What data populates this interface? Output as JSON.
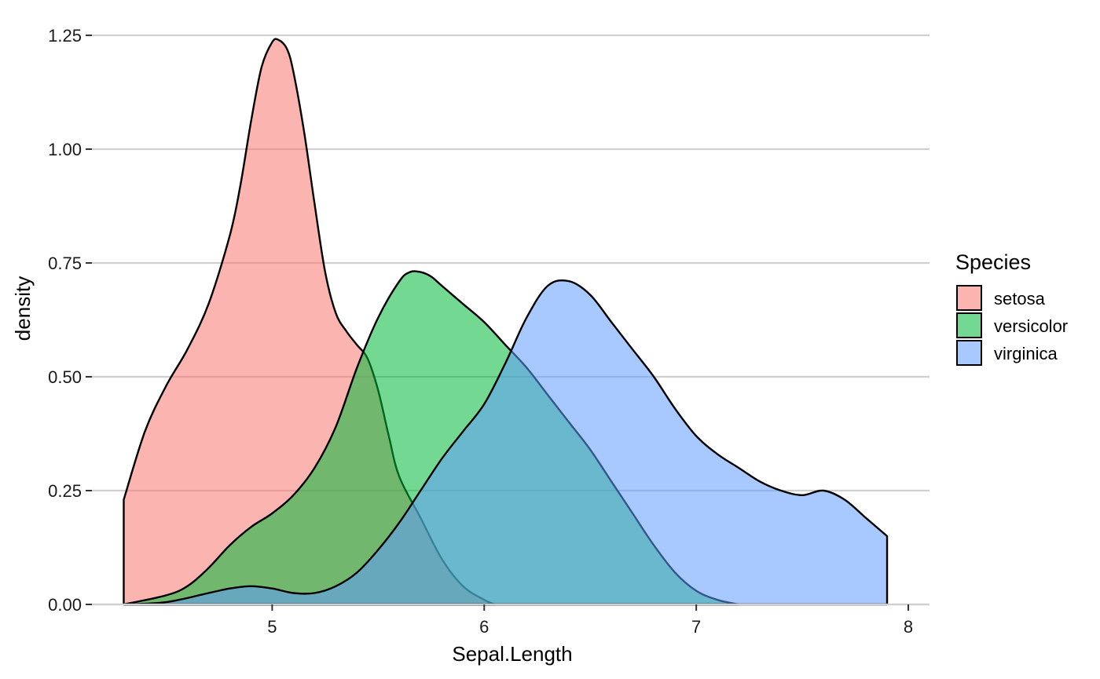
{
  "chart_data": {
    "type": "area",
    "subtype": "density",
    "xlabel": "Sepal.Length",
    "ylabel": "density",
    "xlim": [
      4.15,
      8.1
    ],
    "ylim": [
      0,
      1.25
    ],
    "x_ticks": [
      5,
      6,
      7,
      8
    ],
    "y_ticks": [
      0.0,
      0.25,
      0.5,
      0.75,
      1.0,
      1.25
    ],
    "x_tick_labels": [
      "5",
      "6",
      "7",
      "8"
    ],
    "y_tick_labels": [
      "0.00",
      "0.25",
      "0.50",
      "0.75",
      "1.00",
      "1.25"
    ],
    "grid": "horizontal",
    "legend": {
      "title": "Species",
      "position": "right"
    },
    "series": [
      {
        "name": "setosa",
        "color": "#F8766D",
        "x": [
          4.3,
          4.4,
          4.5,
          4.6,
          4.7,
          4.8,
          4.85,
          4.9,
          4.95,
          5.0,
          5.03,
          5.07,
          5.1,
          5.15,
          5.2,
          5.25,
          5.3,
          5.35,
          5.4,
          5.45,
          5.5,
          5.55,
          5.6,
          5.7,
          5.8,
          5.9,
          6.0,
          6.05
        ],
        "values": [
          0.23,
          0.38,
          0.48,
          0.56,
          0.66,
          0.81,
          0.92,
          1.06,
          1.18,
          1.235,
          1.24,
          1.22,
          1.17,
          1.04,
          0.88,
          0.73,
          0.64,
          0.6,
          0.57,
          0.54,
          0.47,
          0.37,
          0.28,
          0.19,
          0.1,
          0.04,
          0.01,
          0.0
        ]
      },
      {
        "name": "versicolor",
        "color": "#00BA38",
        "x": [
          4.3,
          4.5,
          4.6,
          4.7,
          4.8,
          4.9,
          5.0,
          5.1,
          5.2,
          5.3,
          5.4,
          5.5,
          5.6,
          5.65,
          5.7,
          5.75,
          5.8,
          5.9,
          6.0,
          6.1,
          6.2,
          6.3,
          6.4,
          6.5,
          6.6,
          6.7,
          6.8,
          6.9,
          7.0,
          7.1,
          7.2
        ],
        "values": [
          0.0,
          0.02,
          0.04,
          0.08,
          0.13,
          0.17,
          0.2,
          0.24,
          0.3,
          0.39,
          0.52,
          0.63,
          0.71,
          0.73,
          0.73,
          0.72,
          0.7,
          0.66,
          0.62,
          0.57,
          0.52,
          0.46,
          0.4,
          0.34,
          0.27,
          0.2,
          0.13,
          0.07,
          0.03,
          0.01,
          0.0
        ]
      },
      {
        "name": "virginica",
        "color": "#619CFF",
        "x": [
          4.3,
          4.5,
          4.7,
          4.8,
          4.9,
          5.0,
          5.1,
          5.2,
          5.3,
          5.4,
          5.5,
          5.6,
          5.7,
          5.8,
          5.9,
          6.0,
          6.1,
          6.2,
          6.3,
          6.4,
          6.5,
          6.6,
          6.7,
          6.8,
          6.9,
          7.0,
          7.1,
          7.2,
          7.3,
          7.4,
          7.5,
          7.6,
          7.7,
          7.8,
          7.9
        ],
        "values": [
          0.0,
          0.005,
          0.025,
          0.035,
          0.04,
          0.035,
          0.025,
          0.025,
          0.04,
          0.07,
          0.12,
          0.18,
          0.25,
          0.32,
          0.38,
          0.44,
          0.53,
          0.63,
          0.7,
          0.71,
          0.68,
          0.62,
          0.56,
          0.5,
          0.43,
          0.37,
          0.33,
          0.3,
          0.27,
          0.25,
          0.24,
          0.25,
          0.23,
          0.19,
          0.15
        ]
      }
    ]
  }
}
